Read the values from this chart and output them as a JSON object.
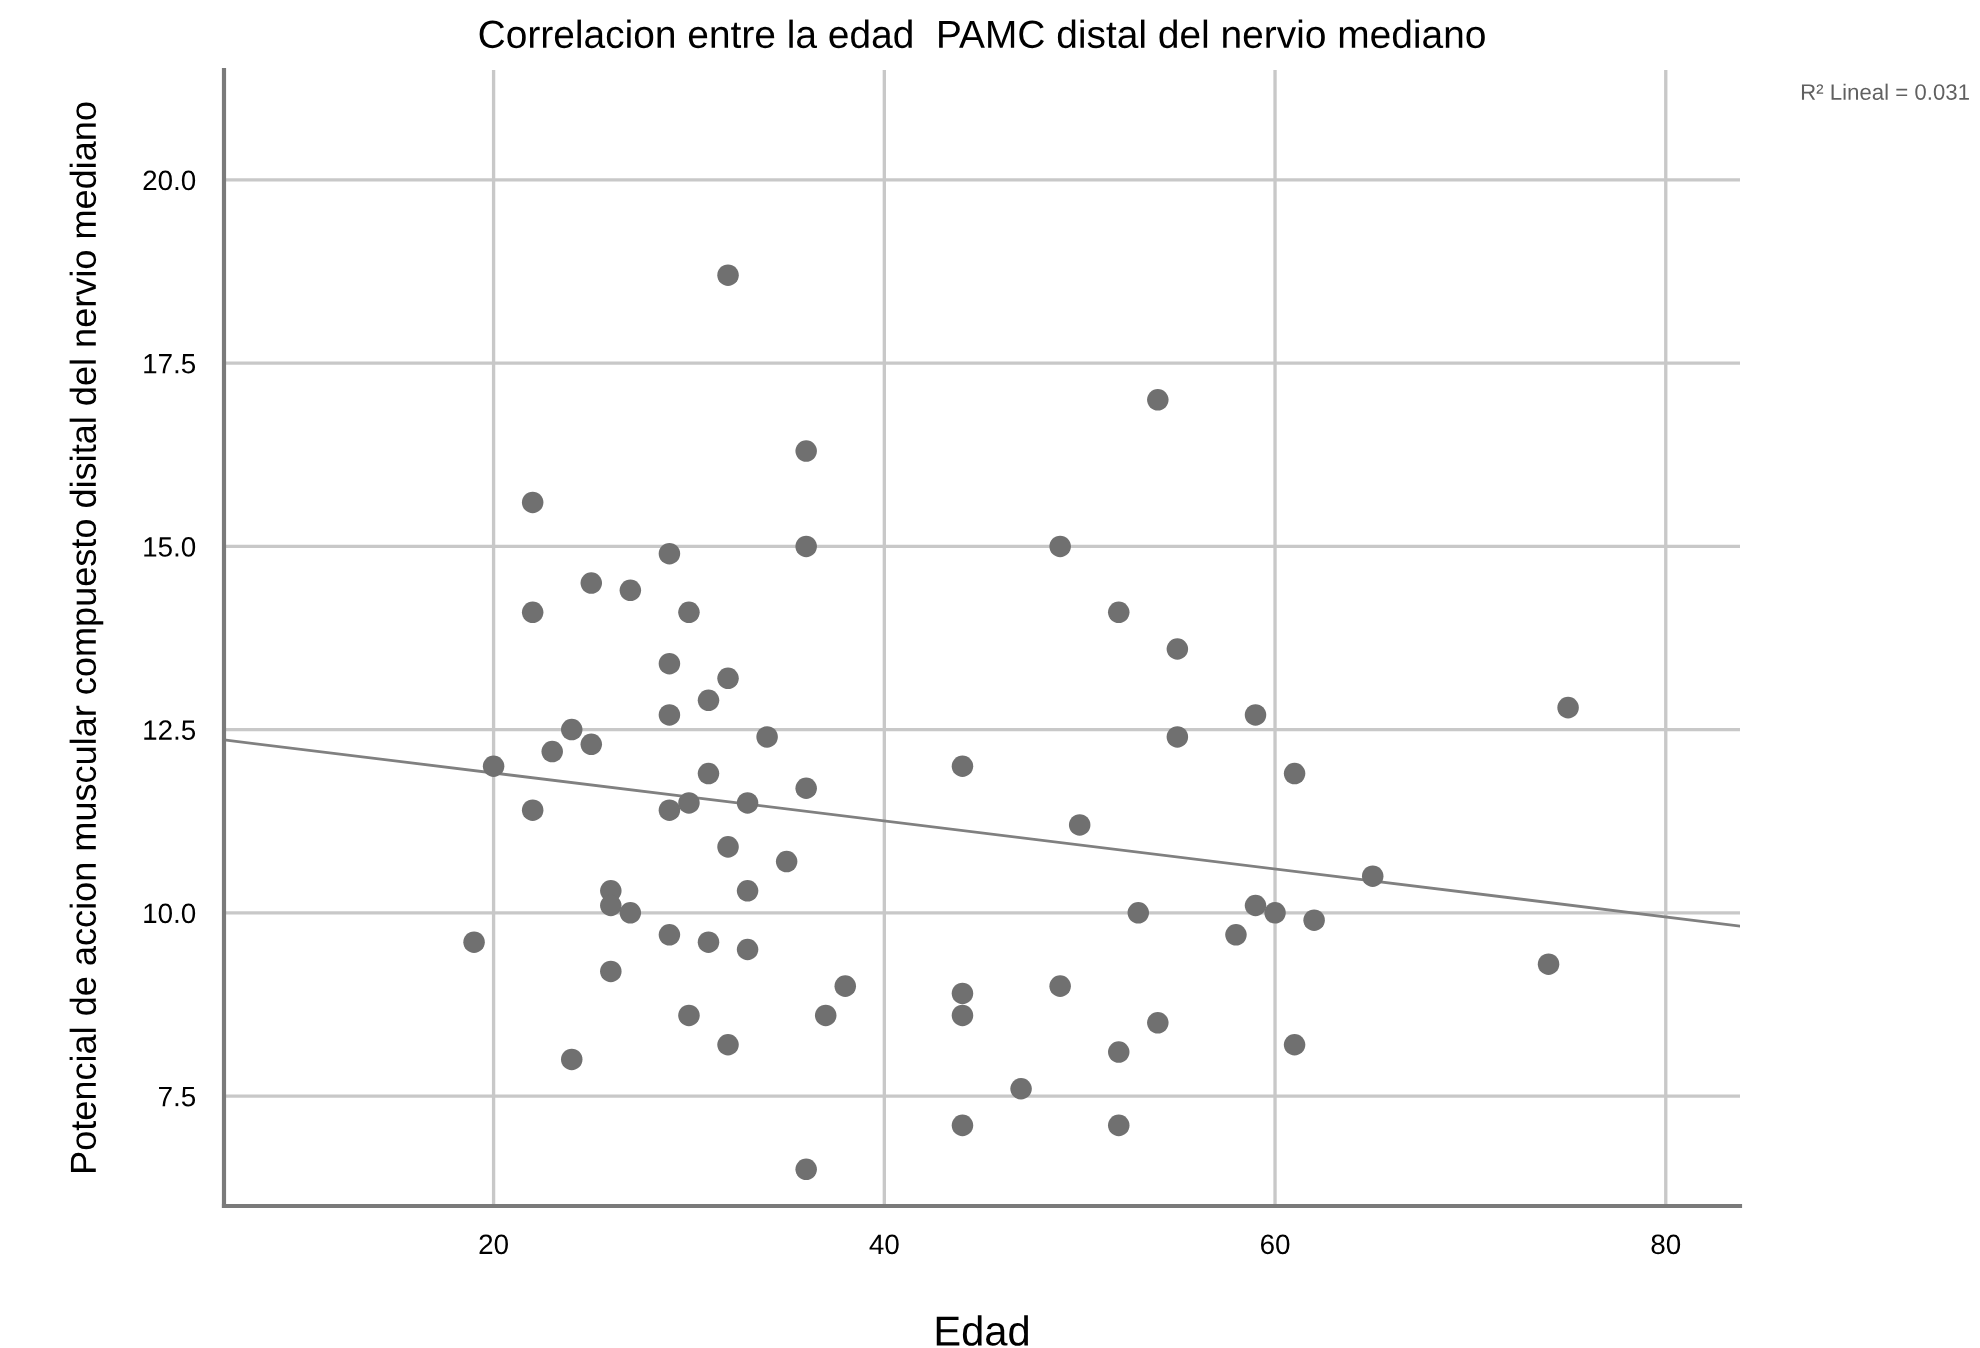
{
  "chart_data": {
    "type": "scatter",
    "title": "Correlacion entre la edad  PAMC distal del nervio mediano",
    "xlabel": "Edad",
    "ylabel": "Potencial de accion muscular compuesto disital del nervio mediano",
    "series": [
      {
        "color": "#707070",
        "marker": "circle",
        "x": [
          19,
          20,
          22,
          22,
          22,
          23,
          24,
          24,
          25,
          25,
          26,
          26,
          26,
          27,
          27,
          29,
          29,
          29,
          29,
          29,
          30,
          30,
          30,
          31,
          31,
          31,
          32,
          32,
          32,
          32,
          33,
          33,
          33,
          34,
          35,
          36,
          36,
          36,
          36,
          37,
          38,
          44,
          44,
          44,
          44,
          47,
          49,
          49,
          50,
          52,
          52,
          52,
          53,
          54,
          54,
          55,
          55,
          58,
          59,
          59,
          60,
          61,
          61,
          62,
          65,
          74,
          75
        ],
        "values": [
          9.6,
          12.0,
          15.6,
          14.1,
          11.4,
          12.2,
          12.5,
          8.0,
          14.5,
          12.3,
          10.3,
          10.1,
          9.2,
          14.4,
          10.0,
          14.9,
          13.4,
          12.7,
          11.4,
          9.7,
          14.1,
          11.5,
          8.6,
          12.9,
          11.9,
          9.6,
          18.7,
          13.2,
          10.9,
          8.2,
          11.5,
          10.3,
          9.5,
          12.4,
          10.7,
          16.3,
          15.0,
          11.7,
          6.5,
          8.6,
          9.0,
          12.0,
          8.9,
          8.6,
          7.1,
          7.6,
          15.0,
          9.0,
          11.2,
          14.1,
          8.1,
          7.1,
          10.0,
          17.0,
          8.5,
          13.6,
          12.4,
          9.7,
          12.7,
          10.1,
          10.0,
          11.9,
          8.2,
          9.9,
          10.5,
          9.3,
          12.8
        ]
      },
      {
        "type": "line",
        "marker": "none",
        "color": "#808080",
        "x": [
          6.2,
          83.8
        ],
        "values": [
          12.36,
          9.82
        ]
      }
    ],
    "annotations": [
      "R² Lineal = 0.031"
    ],
    "xlim": [
      6.2,
      83.8
    ],
    "ylim": [
      6.0,
      21.5
    ],
    "xticks": [
      20,
      40,
      60,
      80
    ],
    "yticks": [
      {
        "value": 7.5,
        "label": "7.5"
      },
      {
        "value": 10,
        "label": "10.0"
      },
      {
        "value": 12.5,
        "label": "12.5"
      },
      {
        "value": 15,
        "label": "15.0"
      },
      {
        "value": 17.5,
        "label": "17.5"
      },
      {
        "value": 20,
        "label": "20.0"
      }
    ],
    "grid": true,
    "line_style": "solid"
  }
}
